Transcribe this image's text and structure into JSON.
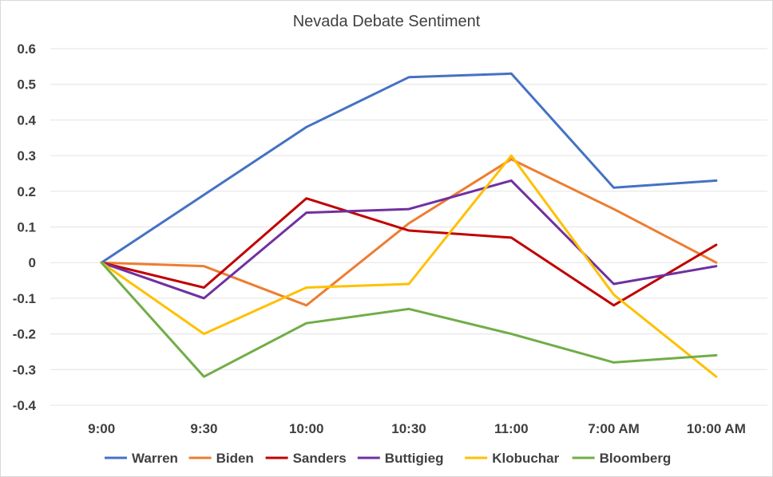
{
  "chart_data": {
    "type": "line",
    "title": "Nevada Debate Sentiment",
    "xlabel": "",
    "ylabel": "",
    "categories": [
      "9:00",
      "9:30",
      "10:00",
      "10:30",
      "11:00",
      "7:00 AM",
      "10:00 AM"
    ],
    "ylim": [
      -0.4,
      0.6
    ],
    "yticks": [
      "0.6",
      "0.5",
      "0.4",
      "0.3",
      "0.2",
      "0.1",
      "0",
      "-0.1",
      "-0.2",
      "-0.3",
      "-0.4"
    ],
    "grid": true,
    "legend_position": "bottom",
    "series": [
      {
        "name": "Warren",
        "color": "#4472c4",
        "values": [
          0,
          0.19,
          0.38,
          0.52,
          0.53,
          0.21,
          0.23
        ]
      },
      {
        "name": "Biden",
        "color": "#ed7d31",
        "values": [
          0,
          -0.01,
          -0.12,
          0.11,
          0.29,
          0.15,
          0
        ]
      },
      {
        "name": "Sanders",
        "color": "#c00000",
        "values": [
          0,
          -0.07,
          0.18,
          0.09,
          0.07,
          -0.12,
          0.05
        ]
      },
      {
        "name": "Buttigieg",
        "color": "#7030a0",
        "values": [
          0,
          -0.1,
          0.14,
          0.15,
          0.23,
          -0.06,
          -0.01
        ]
      },
      {
        "name": "Klobuchar",
        "color": "#ffc000",
        "values": [
          0,
          -0.2,
          -0.07,
          -0.06,
          0.3,
          -0.09,
          -0.32
        ]
      },
      {
        "name": "Bloomberg",
        "color": "#70ad47",
        "values": [
          0,
          -0.32,
          -0.17,
          -0.13,
          -0.2,
          -0.28,
          -0.26
        ]
      }
    ]
  }
}
